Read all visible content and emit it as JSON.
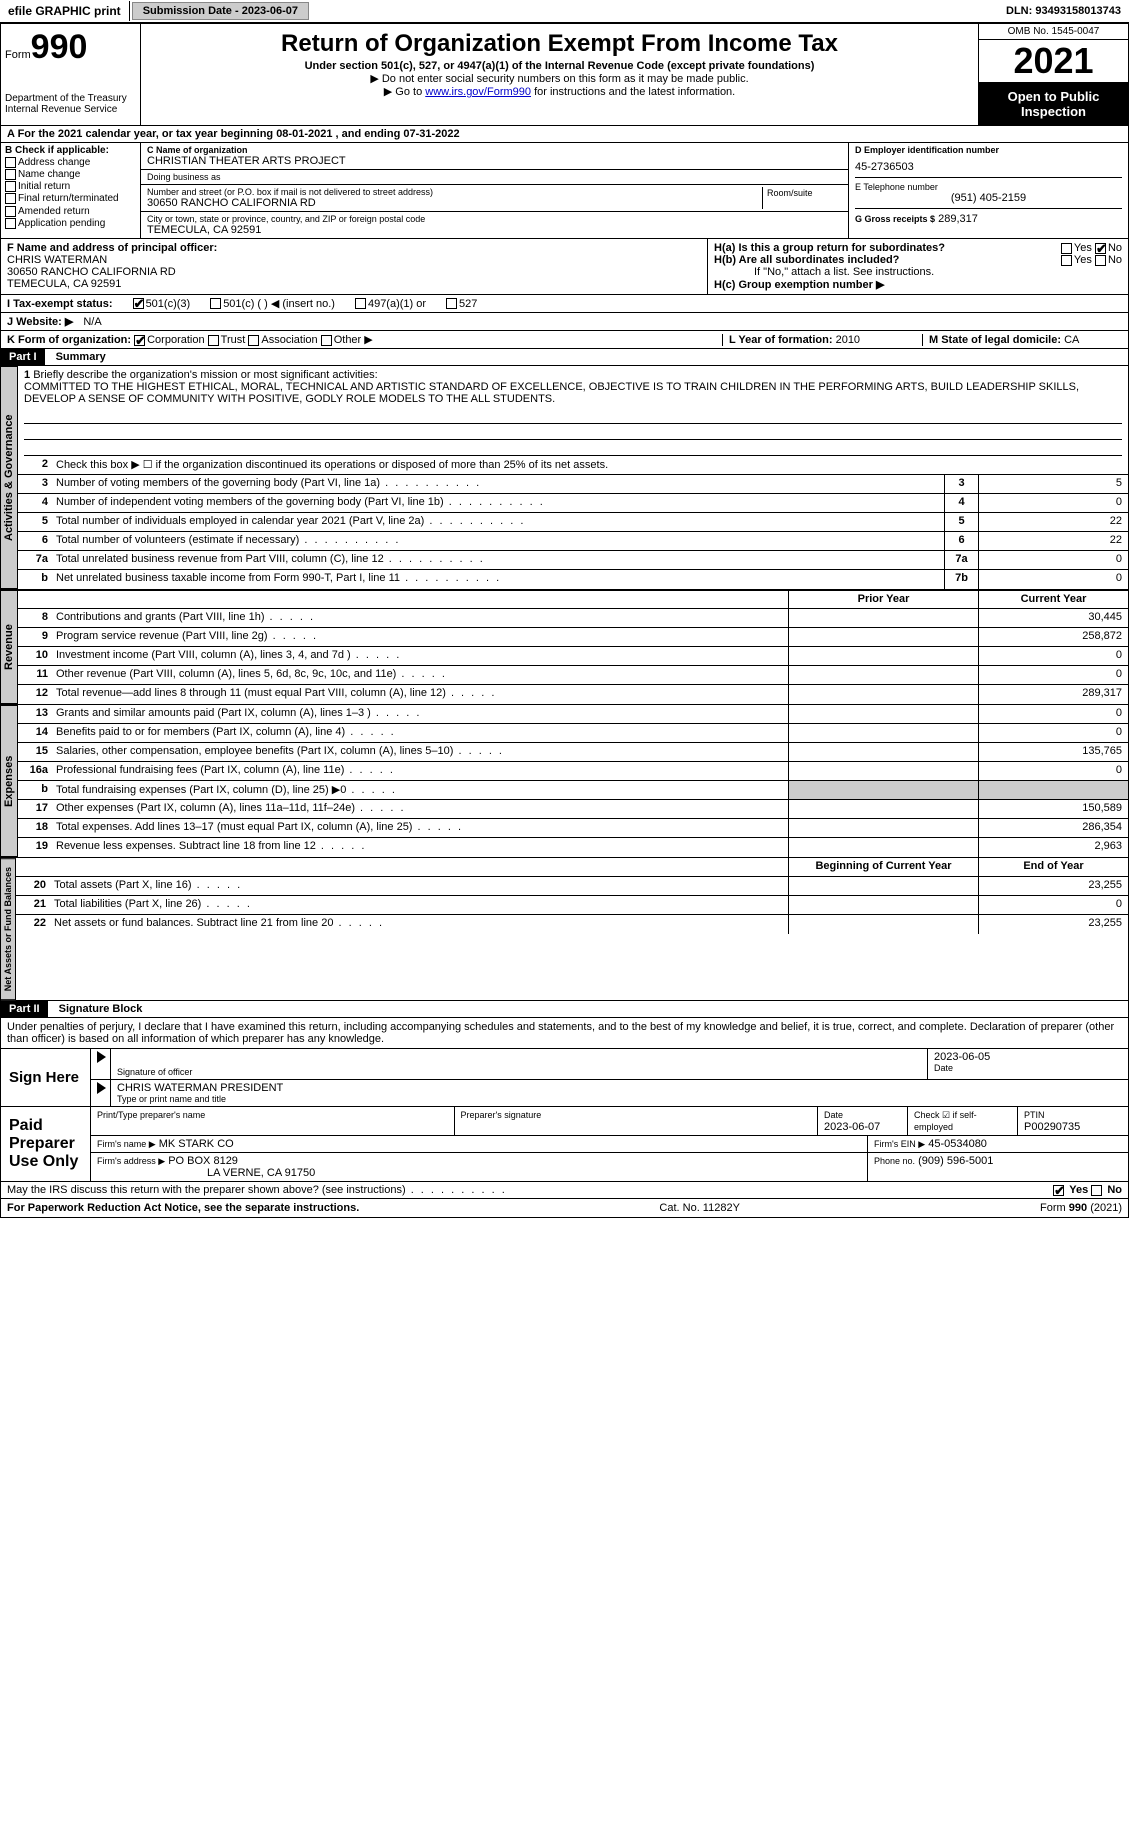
{
  "topbar": {
    "efile": "efile GRAPHIC print",
    "submission_label": "Submission Date - 2023-06-07",
    "dln": "DLN: 93493158013743"
  },
  "header": {
    "form_word": "Form",
    "form_num": "990",
    "dept": "Department of the Treasury Internal Revenue Service",
    "title": "Return of Organization Exempt From Income Tax",
    "sub": "Under section 501(c), 527, or 4947(a)(1) of the Internal Revenue Code (except private foundations)",
    "note1": "▶ Do not enter social security numbers on this form as it may be made public.",
    "note2_pre": "▶ Go to ",
    "note2_link": "www.irs.gov/Form990",
    "note2_post": " for instructions and the latest information.",
    "omb": "OMB No. 1545-0047",
    "year": "2021",
    "open": "Open to Public Inspection"
  },
  "period": {
    "line": "A For the 2021 calendar year, or tax year beginning 08-01-2021    , and ending 07-31-2022"
  },
  "colB": {
    "header": "B Check if applicable:",
    "items": [
      "Address change",
      "Name change",
      "Initial return",
      "Final return/terminated",
      "Amended return",
      "Application pending"
    ]
  },
  "colC": {
    "name_label": "C Name of organization",
    "name": "CHRISTIAN THEATER ARTS PROJECT",
    "dba_label": "Doing business as",
    "addr_label": "Number and street (or P.O. box if mail is not delivered to street address)",
    "room_label": "Room/suite",
    "addr": "30650 RANCHO CALIFORNIA RD",
    "city_label": "City or town, state or province, country, and ZIP or foreign postal code",
    "city": "TEMECULA, CA  92591"
  },
  "colD": {
    "label": "D Employer identification number",
    "value": "45-2736503"
  },
  "colE": {
    "label": "E Telephone number",
    "value": "(951) 405-2159"
  },
  "colG": {
    "label": "G Gross receipts $",
    "value": "289,317"
  },
  "colF": {
    "label": "F  Name and address of principal officer:",
    "name": "CHRIS WATERMAN",
    "addr1": "30650 RANCHO CALIFORNIA RD",
    "addr2": "TEMECULA, CA  92591"
  },
  "colH": {
    "a": "H(a)  Is this a group return for subordinates?",
    "b": "H(b)  Are all subordinates included?",
    "b_note": "If \"No,\" attach a list. See instructions.",
    "c": "H(c)  Group exemption number ▶",
    "yes": "Yes",
    "no": "No"
  },
  "rowI": {
    "label": "I  Tax-exempt status:",
    "o1": "501(c)(3)",
    "o2": "501(c) (   ) ◀ (insert no.)",
    "o3": "497(a)(1) or",
    "o4": "527"
  },
  "rowJ": {
    "label": "J  Website: ▶",
    "value": "N/A"
  },
  "rowK": {
    "label": "K Form of organization:",
    "o1": "Corporation",
    "o2": "Trust",
    "o3": "Association",
    "o4": "Other ▶"
  },
  "rowL": {
    "label": "L Year of formation:",
    "value": "2010"
  },
  "rowM": {
    "label": "M State of legal domicile:",
    "value": "CA"
  },
  "part1": {
    "hdr": "Part I",
    "title": "Summary"
  },
  "tabs": {
    "act": "Activities & Governance",
    "rev": "Revenue",
    "exp": "Expenses",
    "net": "Net Assets or Fund Balances"
  },
  "mission": {
    "num": "1",
    "label": "Briefly describe the organization's mission or most significant activities:",
    "text": "COMMITTED TO THE HIGHEST ETHICAL, MORAL, TECHNICAL AND ARTISTIC STANDARD OF EXCELLENCE, OBJECTIVE IS TO TRAIN CHILDREN IN THE PERFORMING ARTS, BUILD LEADERSHIP SKILLS, DEVELOP A SENSE OF COMMUNITY WITH POSITIVE, GODLY ROLE MODELS TO THE ALL STUDENTS."
  },
  "lines_act": [
    {
      "n": "2",
      "d": "Check this box ▶ ☐  if the organization discontinued its operations or disposed of more than 25% of its net assets.",
      "box": "",
      "v": ""
    },
    {
      "n": "3",
      "d": "Number of voting members of the governing body (Part VI, line 1a)",
      "box": "3",
      "v": "5"
    },
    {
      "n": "4",
      "d": "Number of independent voting members of the governing body (Part VI, line 1b)",
      "box": "4",
      "v": "0"
    },
    {
      "n": "5",
      "d": "Total number of individuals employed in calendar year 2021 (Part V, line 2a)",
      "box": "5",
      "v": "22"
    },
    {
      "n": "6",
      "d": "Total number of volunteers (estimate if necessary)",
      "box": "6",
      "v": "22"
    },
    {
      "n": "7a",
      "d": "Total unrelated business revenue from Part VIII, column (C), line 12",
      "box": "7a",
      "v": "0"
    },
    {
      "n": "b",
      "d": "Net unrelated business taxable income from Form 990-T, Part I, line 11",
      "box": "7b",
      "v": "0"
    }
  ],
  "col_hdrs": {
    "prior": "Prior Year",
    "current": "Current Year"
  },
  "lines_rev": [
    {
      "n": "8",
      "d": "Contributions and grants (Part VIII, line 1h)",
      "p": "",
      "c": "30,445"
    },
    {
      "n": "9",
      "d": "Program service revenue (Part VIII, line 2g)",
      "p": "",
      "c": "258,872"
    },
    {
      "n": "10",
      "d": "Investment income (Part VIII, column (A), lines 3, 4, and 7d )",
      "p": "",
      "c": "0"
    },
    {
      "n": "11",
      "d": "Other revenue (Part VIII, column (A), lines 5, 6d, 8c, 9c, 10c, and 11e)",
      "p": "",
      "c": "0"
    },
    {
      "n": "12",
      "d": "Total revenue—add lines 8 through 11 (must equal Part VIII, column (A), line 12)",
      "p": "",
      "c": "289,317"
    }
  ],
  "lines_exp": [
    {
      "n": "13",
      "d": "Grants and similar amounts paid (Part IX, column (A), lines 1–3 )",
      "p": "",
      "c": "0"
    },
    {
      "n": "14",
      "d": "Benefits paid to or for members (Part IX, column (A), line 4)",
      "p": "",
      "c": "0"
    },
    {
      "n": "15",
      "d": "Salaries, other compensation, employee benefits (Part IX, column (A), lines 5–10)",
      "p": "",
      "c": "135,765"
    },
    {
      "n": "16a",
      "d": "Professional fundraising fees (Part IX, column (A), line 11e)",
      "p": "",
      "c": "0"
    },
    {
      "n": "b",
      "d": "Total fundraising expenses (Part IX, column (D), line 25) ▶0",
      "p": "",
      "c": "",
      "shade": true
    },
    {
      "n": "17",
      "d": "Other expenses (Part IX, column (A), lines 11a–11d, 11f–24e)",
      "p": "",
      "c": "150,589"
    },
    {
      "n": "18",
      "d": "Total expenses. Add lines 13–17 (must equal Part IX, column (A), line 25)",
      "p": "",
      "c": "286,354"
    },
    {
      "n": "19",
      "d": "Revenue less expenses. Subtract line 18 from line 12",
      "p": "",
      "c": "2,963"
    }
  ],
  "col_hdrs2": {
    "prior": "Beginning of Current Year",
    "current": "End of Year"
  },
  "lines_net": [
    {
      "n": "20",
      "d": "Total assets (Part X, line 16)",
      "p": "",
      "c": "23,255"
    },
    {
      "n": "21",
      "d": "Total liabilities (Part X, line 26)",
      "p": "",
      "c": "0"
    },
    {
      "n": "22",
      "d": "Net assets or fund balances. Subtract line 21 from line 20",
      "p": "",
      "c": "23,255"
    }
  ],
  "part2": {
    "hdr": "Part II",
    "title": "Signature Block"
  },
  "penalties": "Under penalties of perjury, I declare that I have examined this return, including accompanying schedules and statements, and to the best of my knowledge and belief, it is true, correct, and complete. Declaration of preparer (other than officer) is based on all information of which preparer has any knowledge.",
  "sign": {
    "here": "Sign Here",
    "sig_label": "Signature of officer",
    "date": "2023-06-05",
    "date_label": "Date",
    "name": "CHRIS WATERMAN  PRESIDENT",
    "name_label": "Type or print name and title"
  },
  "preparer": {
    "title": "Paid Preparer Use Only",
    "h1": "Print/Type preparer's name",
    "h2": "Preparer's signature",
    "h3": "Date",
    "h3v": "2023-06-07",
    "h4": "Check ☑ if self-employed",
    "h5": "PTIN",
    "h5v": "P00290735",
    "firm_label": "Firm's name   ▶",
    "firm": "MK STARK CO",
    "ein_label": "Firm's EIN ▶",
    "ein": "45-0534080",
    "addr_label": "Firm's address ▶",
    "addr1": "PO BOX 8129",
    "addr2": "LA VERNE, CA  91750",
    "phone_label": "Phone no.",
    "phone": "(909) 596-5001"
  },
  "discuss": {
    "q": "May the IRS discuss this return with the preparer shown above? (see instructions)",
    "yes": "Yes",
    "no": "No"
  },
  "footer": {
    "left": "For Paperwork Reduction Act Notice, see the separate instructions.",
    "mid": "Cat. No. 11282Y",
    "right": "Form 990 (2021)"
  }
}
